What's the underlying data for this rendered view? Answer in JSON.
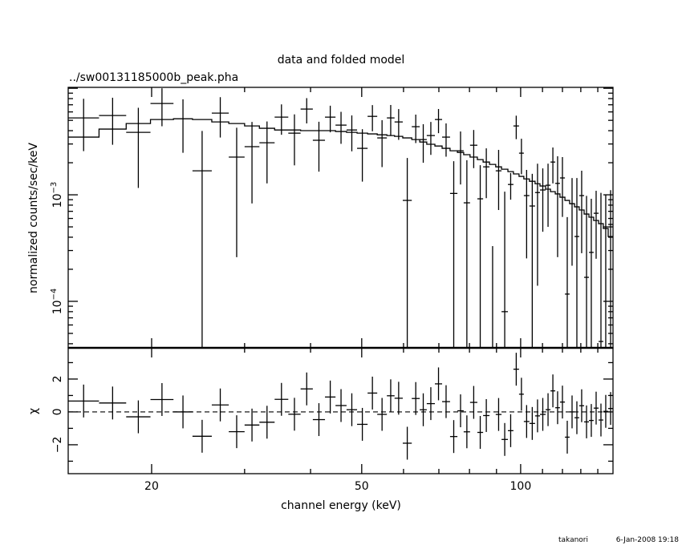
{
  "chart_data": {
    "type": "line",
    "title": "data and folded model",
    "subtitle": "../sw00131185000b_peak.pha",
    "xlabel": "channel energy (keV)",
    "ylabel": "normalized counts/sec/keV",
    "residual_ylabel": "χ",
    "x_scale": "log",
    "y_scale": "log",
    "xlim": [
      13.9,
      149.6
    ],
    "ylim": [
      3.66e-05,
      0.0102
    ],
    "residual_ylim": [
      -3.76,
      3.9
    ],
    "x_tick_labels": [
      {
        "value": 20,
        "label": "20"
      },
      {
        "value": 50,
        "label": "50"
      },
      {
        "value": 100,
        "label": "100"
      }
    ],
    "y_tick_labels": [
      {
        "value": 0.001,
        "base": "10",
        "exp": "−3"
      },
      {
        "value": 0.0001,
        "base": "10",
        "exp": "−4"
      }
    ],
    "residual_tick_labels": [
      {
        "value": 2,
        "label": "2"
      },
      {
        "value": 0,
        "label": "0"
      },
      {
        "value": -2,
        "label": "−2"
      }
    ],
    "bin_edges_keV": [
      13.9,
      15.9,
      17.9,
      19.9,
      22.0,
      23.9,
      26.0,
      28.0,
      30.0,
      32.0,
      34.2,
      36.3,
      38.3,
      40.4,
      42.6,
      44.6,
      46.8,
      49.0,
      51.3,
      53.5,
      55.8,
      57.7,
      59.8,
      62.2,
      64.4,
      66.4,
      68.8,
      71.0,
      73.5,
      75.9,
      78.0,
      80.2,
      82.8,
      84.9,
      87.3,
      89.7,
      92.0,
      94.6,
      96.9,
      99.3,
      101.4,
      103.9,
      106.5,
      108.8,
      111.5,
      113.9,
      116.3,
      118.7,
      121.3,
      123.8,
      126.5,
      129.1,
      131.9,
      134.7,
      137.5,
      140.5,
      143.4,
      146.5,
      149.6
    ],
    "series": [
      {
        "name": "data",
        "unit": "1e-3 counts/sec/keV",
        "values": [
          5.27,
          5.55,
          3.86,
          7.2,
          5.18,
          1.68,
          5.85,
          2.26,
          2.83,
          3.08,
          5.36,
          3.79,
          6.38,
          3.25,
          5.36,
          4.51,
          4.06,
          2.73,
          5.45,
          3.42,
          5.27,
          4.83,
          0.886,
          4.36,
          3.3,
          3.6,
          5.09,
          3.48,
          1.03,
          2.59,
          0.841,
          2.92,
          0.917,
          1.83,
          0.02,
          1.68,
          0.08,
          1.25,
          4.43,
          2.46,
          0.983,
          0.785,
          1.05,
          1.11,
          1.23,
          2.03,
          1.28,
          1.44,
          0.117,
          0.826,
          0.406,
          0.983,
          0.168,
          0.288,
          0.671,
          0.042,
          0.5,
          0.527
        ],
        "errors": [
          2.7,
          2.6,
          2.7,
          2.8,
          2.7,
          2.3,
          2.4,
          2.0,
          2.0,
          1.8,
          1.7,
          1.9,
          1.7,
          1.6,
          1.5,
          1.5,
          1.5,
          1.4,
          1.5,
          1.6,
          1.7,
          1.55,
          1.33,
          1.3,
          1.3,
          1.23,
          1.3,
          1.2,
          1.04,
          1.34,
          1.27,
          1.14,
          0.98,
          0.9,
          0.31,
          0.96,
          0.99,
          0.35,
          1.1,
          0.9,
          0.73,
          0.79,
          0.91,
          0.66,
          0.73,
          0.75,
          1.02,
          0.82,
          0.5,
          0.61,
          1.03,
          0.7,
          0.81,
          0.63,
          0.42,
          1.0,
          0.5,
          0.58
        ]
      },
      {
        "name": "folded model",
        "unit": "1e-3 counts/sec/keV",
        "values": [
          3.48,
          4.14,
          4.67,
          5.09,
          5.18,
          5.09,
          4.83,
          4.67,
          4.43,
          4.21,
          4.06,
          4.06,
          4.0,
          4.0,
          4.0,
          3.93,
          3.86,
          3.79,
          3.73,
          3.66,
          3.6,
          3.54,
          3.42,
          3.3,
          3.13,
          2.98,
          2.87,
          2.73,
          2.59,
          2.5,
          2.38,
          2.26,
          2.14,
          2.03,
          1.93,
          1.83,
          1.74,
          1.65,
          1.57,
          1.49,
          1.41,
          1.34,
          1.27,
          1.21,
          1.13,
          1.07,
          1.02,
          0.949,
          0.886,
          0.826,
          0.771,
          0.72,
          0.66,
          0.616,
          0.574,
          0.536,
          0.483,
          0.406
        ]
      }
    ]
  },
  "footer": {
    "user": "takanori",
    "timestamp": "6-Jan-2008 19:18"
  }
}
